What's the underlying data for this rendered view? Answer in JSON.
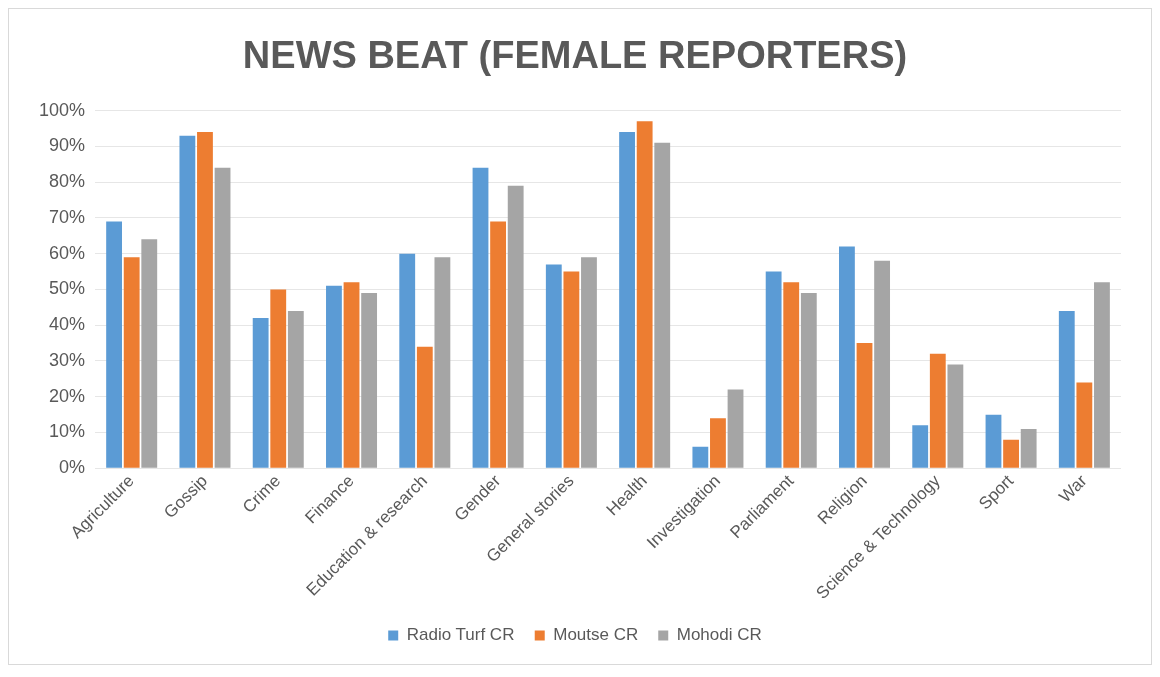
{
  "chart_data": {
    "type": "bar",
    "title": "NEWS BEAT (FEMALE REPORTERS)",
    "categories": [
      "Agriculture",
      "Gossip",
      "Crime",
      "Finance",
      "Education & research",
      "Gender",
      "General stories",
      "Health",
      "Investigation",
      "Parliament",
      "Religion",
      "Science & Technology",
      "Sport",
      "War"
    ],
    "series": [
      {
        "name": "Radio Turf CR",
        "color": "#5b9bd5",
        "values": [
          69,
          93,
          42,
          51,
          60,
          84,
          57,
          94,
          6,
          55,
          62,
          12,
          15,
          44
        ]
      },
      {
        "name": "Moutse CR",
        "color": "#ed7d31",
        "values": [
          59,
          94,
          50,
          52,
          34,
          69,
          55,
          97,
          14,
          52,
          35,
          32,
          8,
          24
        ]
      },
      {
        "name": "Mohodi CR",
        "color": "#a5a5a5",
        "values": [
          64,
          84,
          44,
          49,
          59,
          79,
          59,
          91,
          22,
          49,
          58,
          29,
          11,
          52
        ]
      }
    ],
    "ylim": [
      0,
      100
    ],
    "yticks": [
      {
        "value": 0,
        "label": "0%"
      },
      {
        "value": 10,
        "label": "10%"
      },
      {
        "value": 20,
        "label": "20%"
      },
      {
        "value": 30,
        "label": "30%"
      },
      {
        "value": 40,
        "label": "40%"
      },
      {
        "value": 50,
        "label": "50%"
      },
      {
        "value": 60,
        "label": "60%"
      },
      {
        "value": 70,
        "label": "70%"
      },
      {
        "value": 80,
        "label": "80%"
      },
      {
        "value": 90,
        "label": "90%"
      },
      {
        "value": 100,
        "label": "100%"
      }
    ],
    "grid": "y",
    "legend": "bottom"
  }
}
